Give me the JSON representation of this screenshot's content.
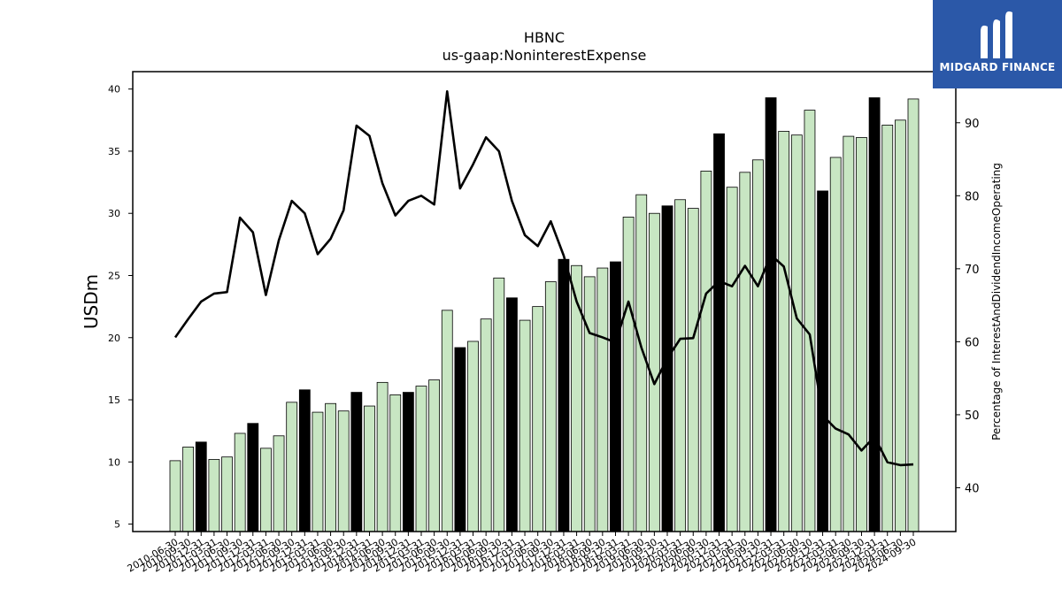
{
  "chart_data": {
    "type": "bar",
    "title": "HBNC",
    "subtitle": "us-gaap:NoninterestExpense",
    "ylabel": "USDm",
    "y2label": "Percentage of InterestAndDividendIncomeOperating",
    "ylim": [
      4.4,
      41.4
    ],
    "y2lim": [
      34,
      97
    ],
    "yticks": [
      5,
      10,
      15,
      20,
      25,
      30,
      35,
      40
    ],
    "y2ticks": [
      40,
      50,
      60,
      70,
      80,
      90
    ],
    "bar_color_default": "#c8e6c3",
    "bar_color_highlight": "#000000",
    "line_color": "#000000",
    "categories": [
      "2010-06-30",
      "2010-09-30",
      "2010-12-31",
      "2011-03-31",
      "2011-06-30",
      "2011-09-30",
      "2011-12-31",
      "2012-03-31",
      "2012-06-30",
      "2012-09-30",
      "2012-12-31",
      "2013-03-31",
      "2013-06-30",
      "2013-09-30",
      "2013-12-31",
      "2014-03-31",
      "2014-06-30",
      "2014-09-30",
      "2014-12-31",
      "2015-03-31",
      "2015-06-30",
      "2015-09-30",
      "2015-12-31",
      "2016-03-31",
      "2016-06-30",
      "2016-09-30",
      "2016-12-31",
      "2017-03-31",
      "2017-06-30",
      "2017-09-30",
      "2017-12-31",
      "2018-03-31",
      "2018-06-30",
      "2018-09-30",
      "2018-12-31",
      "2019-03-31",
      "2019-06-30",
      "2019-09-30",
      "2019-12-31",
      "2020-03-31",
      "2020-06-30",
      "2020-09-30",
      "2020-12-31",
      "2021-03-31",
      "2021-06-30",
      "2021-09-30",
      "2021-12-31",
      "2022-03-31",
      "2022-06-30",
      "2022-09-30",
      "2022-12-31",
      "2023-03-31",
      "2023-06-30",
      "2023-09-30",
      "2023-12-31",
      "2024-03-31",
      "2024-06-30",
      "2024-09-30"
    ],
    "series": [
      {
        "type": "bar",
        "values": [
          10.1,
          11.2,
          11.6,
          10.2,
          10.4,
          12.3,
          13.1,
          11.1,
          12.1,
          14.8,
          15.8,
          14.0,
          14.7,
          14.1,
          15.6,
          14.5,
          16.4,
          15.4,
          15.6,
          16.1,
          16.6,
          22.2,
          19.2,
          19.7,
          21.5,
          24.8,
          23.2,
          21.4,
          22.5,
          24.5,
          26.3,
          25.8,
          24.9,
          25.6,
          26.1,
          29.7,
          31.5,
          30.0,
          30.6,
          31.1,
          30.4,
          33.4,
          36.4,
          32.1,
          33.3,
          34.3,
          39.3,
          36.6,
          36.3,
          38.3,
          31.8,
          34.5,
          36.2,
          36.1,
          39.3,
          37.1,
          37.5,
          39.2
        ],
        "highlight": [
          false,
          false,
          true,
          false,
          false,
          false,
          true,
          false,
          false,
          false,
          true,
          false,
          false,
          false,
          true,
          false,
          false,
          false,
          true,
          false,
          false,
          false,
          true,
          false,
          false,
          false,
          true,
          false,
          false,
          false,
          true,
          false,
          false,
          false,
          true,
          false,
          false,
          false,
          true,
          false,
          false,
          false,
          true,
          false,
          false,
          false,
          true,
          false,
          false,
          false,
          true,
          false,
          false,
          false,
          true,
          false,
          false,
          false
        ]
      },
      {
        "type": "line",
        "axis": "right",
        "values": [
          60.6,
          63.1,
          65.5,
          66.6,
          66.8,
          77.0,
          75.0,
          66.4,
          73.9,
          79.3,
          77.6,
          72.0,
          74.1,
          78.0,
          89.6,
          88.2,
          81.7,
          77.3,
          79.3,
          80.0,
          78.8,
          94.3,
          81.0,
          84.3,
          88.0,
          86.1,
          79.3,
          74.6,
          73.1,
          76.5,
          71.8,
          65.5,
          61.2,
          60.6,
          59.9,
          65.5,
          59.2,
          54.2,
          57.7,
          60.4,
          60.5,
          66.6,
          68.3,
          67.6,
          70.4,
          67.6,
          71.9,
          70.3,
          63.2,
          61.0,
          49.9,
          48.1,
          47.3,
          45.1,
          47.0,
          43.5,
          43.1,
          43.2
        ]
      }
    ]
  },
  "branding": {
    "logo_text": "MIDGARD FINANCE",
    "logo_color": "#2b58a8"
  }
}
